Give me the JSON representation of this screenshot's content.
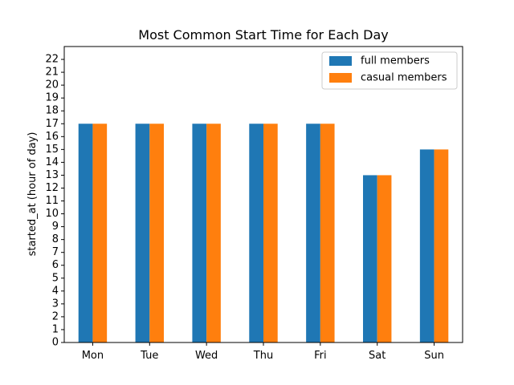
{
  "chart_data": {
    "type": "bar",
    "title": "Most Common Start Time for Each Day",
    "xlabel": "",
    "ylabel": "started_at (hour of day)",
    "categories": [
      "Mon",
      "Tue",
      "Wed",
      "Thu",
      "Fri",
      "Sat",
      "Sun"
    ],
    "series": [
      {
        "name": "full members",
        "color": "#1f77b4",
        "values": [
          17,
          17,
          17,
          17,
          17,
          13,
          15
        ]
      },
      {
        "name": "casual members",
        "color": "#ff7f0e",
        "values": [
          17,
          17,
          17,
          17,
          17,
          13,
          15
        ]
      }
    ],
    "ylim": [
      0,
      23
    ],
    "yticks": [
      0,
      1,
      2,
      3,
      4,
      5,
      6,
      7,
      8,
      9,
      10,
      11,
      12,
      13,
      14,
      15,
      16,
      17,
      18,
      19,
      20,
      21,
      22
    ],
    "grid": false,
    "legend": "top-right"
  }
}
